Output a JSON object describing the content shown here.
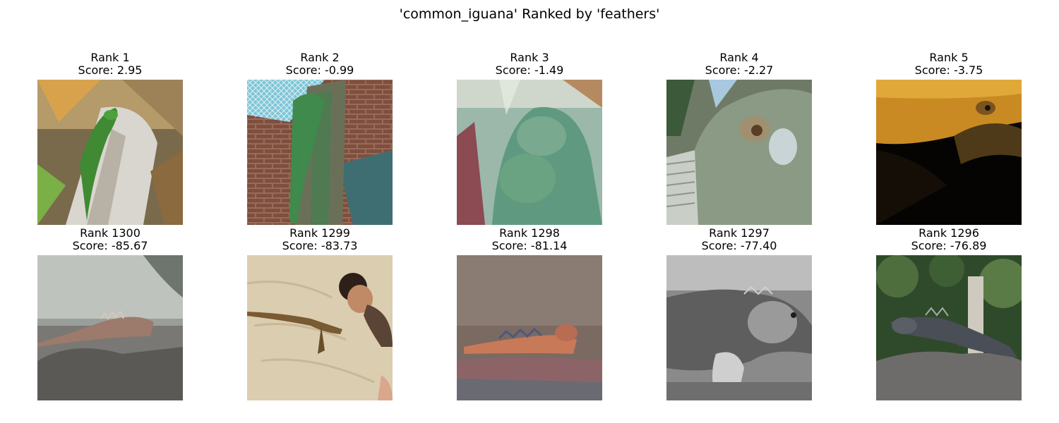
{
  "figure": {
    "title": "'common_iguana' Ranked by 'feathers'"
  },
  "top_row": [
    {
      "rank": "Rank 1",
      "score": "Score: 2.95",
      "scene": "iguana-on-palm-trunk"
    },
    {
      "rank": "Rank 2",
      "score": "Score: -0.99",
      "scene": "iguana-on-branch-brick-wall"
    },
    {
      "rank": "Rank 3",
      "score": "Score: -1.49",
      "scene": "iguana-in-glass-enclosure"
    },
    {
      "rank": "Rank 4",
      "score": "Score: -2.27",
      "scene": "iguana-closeup-scales"
    },
    {
      "rank": "Rank 5",
      "score": "Score: -3.75",
      "scene": "iguana-golden-dark"
    }
  ],
  "bottom_row": [
    {
      "rank": "Rank 1300",
      "score": "Score: -85.67",
      "scene": "marine-iguana-on-rock"
    },
    {
      "rank": "Rank 1299",
      "score": "Score: -83.73",
      "scene": "iguana-on-sand-with-person"
    },
    {
      "rank": "Rank 1298",
      "score": "Score: -81.14",
      "scene": "red-iguana-on-stones"
    },
    {
      "rank": "Rank 1297",
      "score": "Score: -77.40",
      "scene": "iguana-grayscale"
    },
    {
      "rank": "Rank 1296",
      "score": "Score: -76.89",
      "scene": "iguana-on-rock-foliage"
    }
  ],
  "colors": {
    "background": "#ffffff",
    "text": "#000000"
  }
}
